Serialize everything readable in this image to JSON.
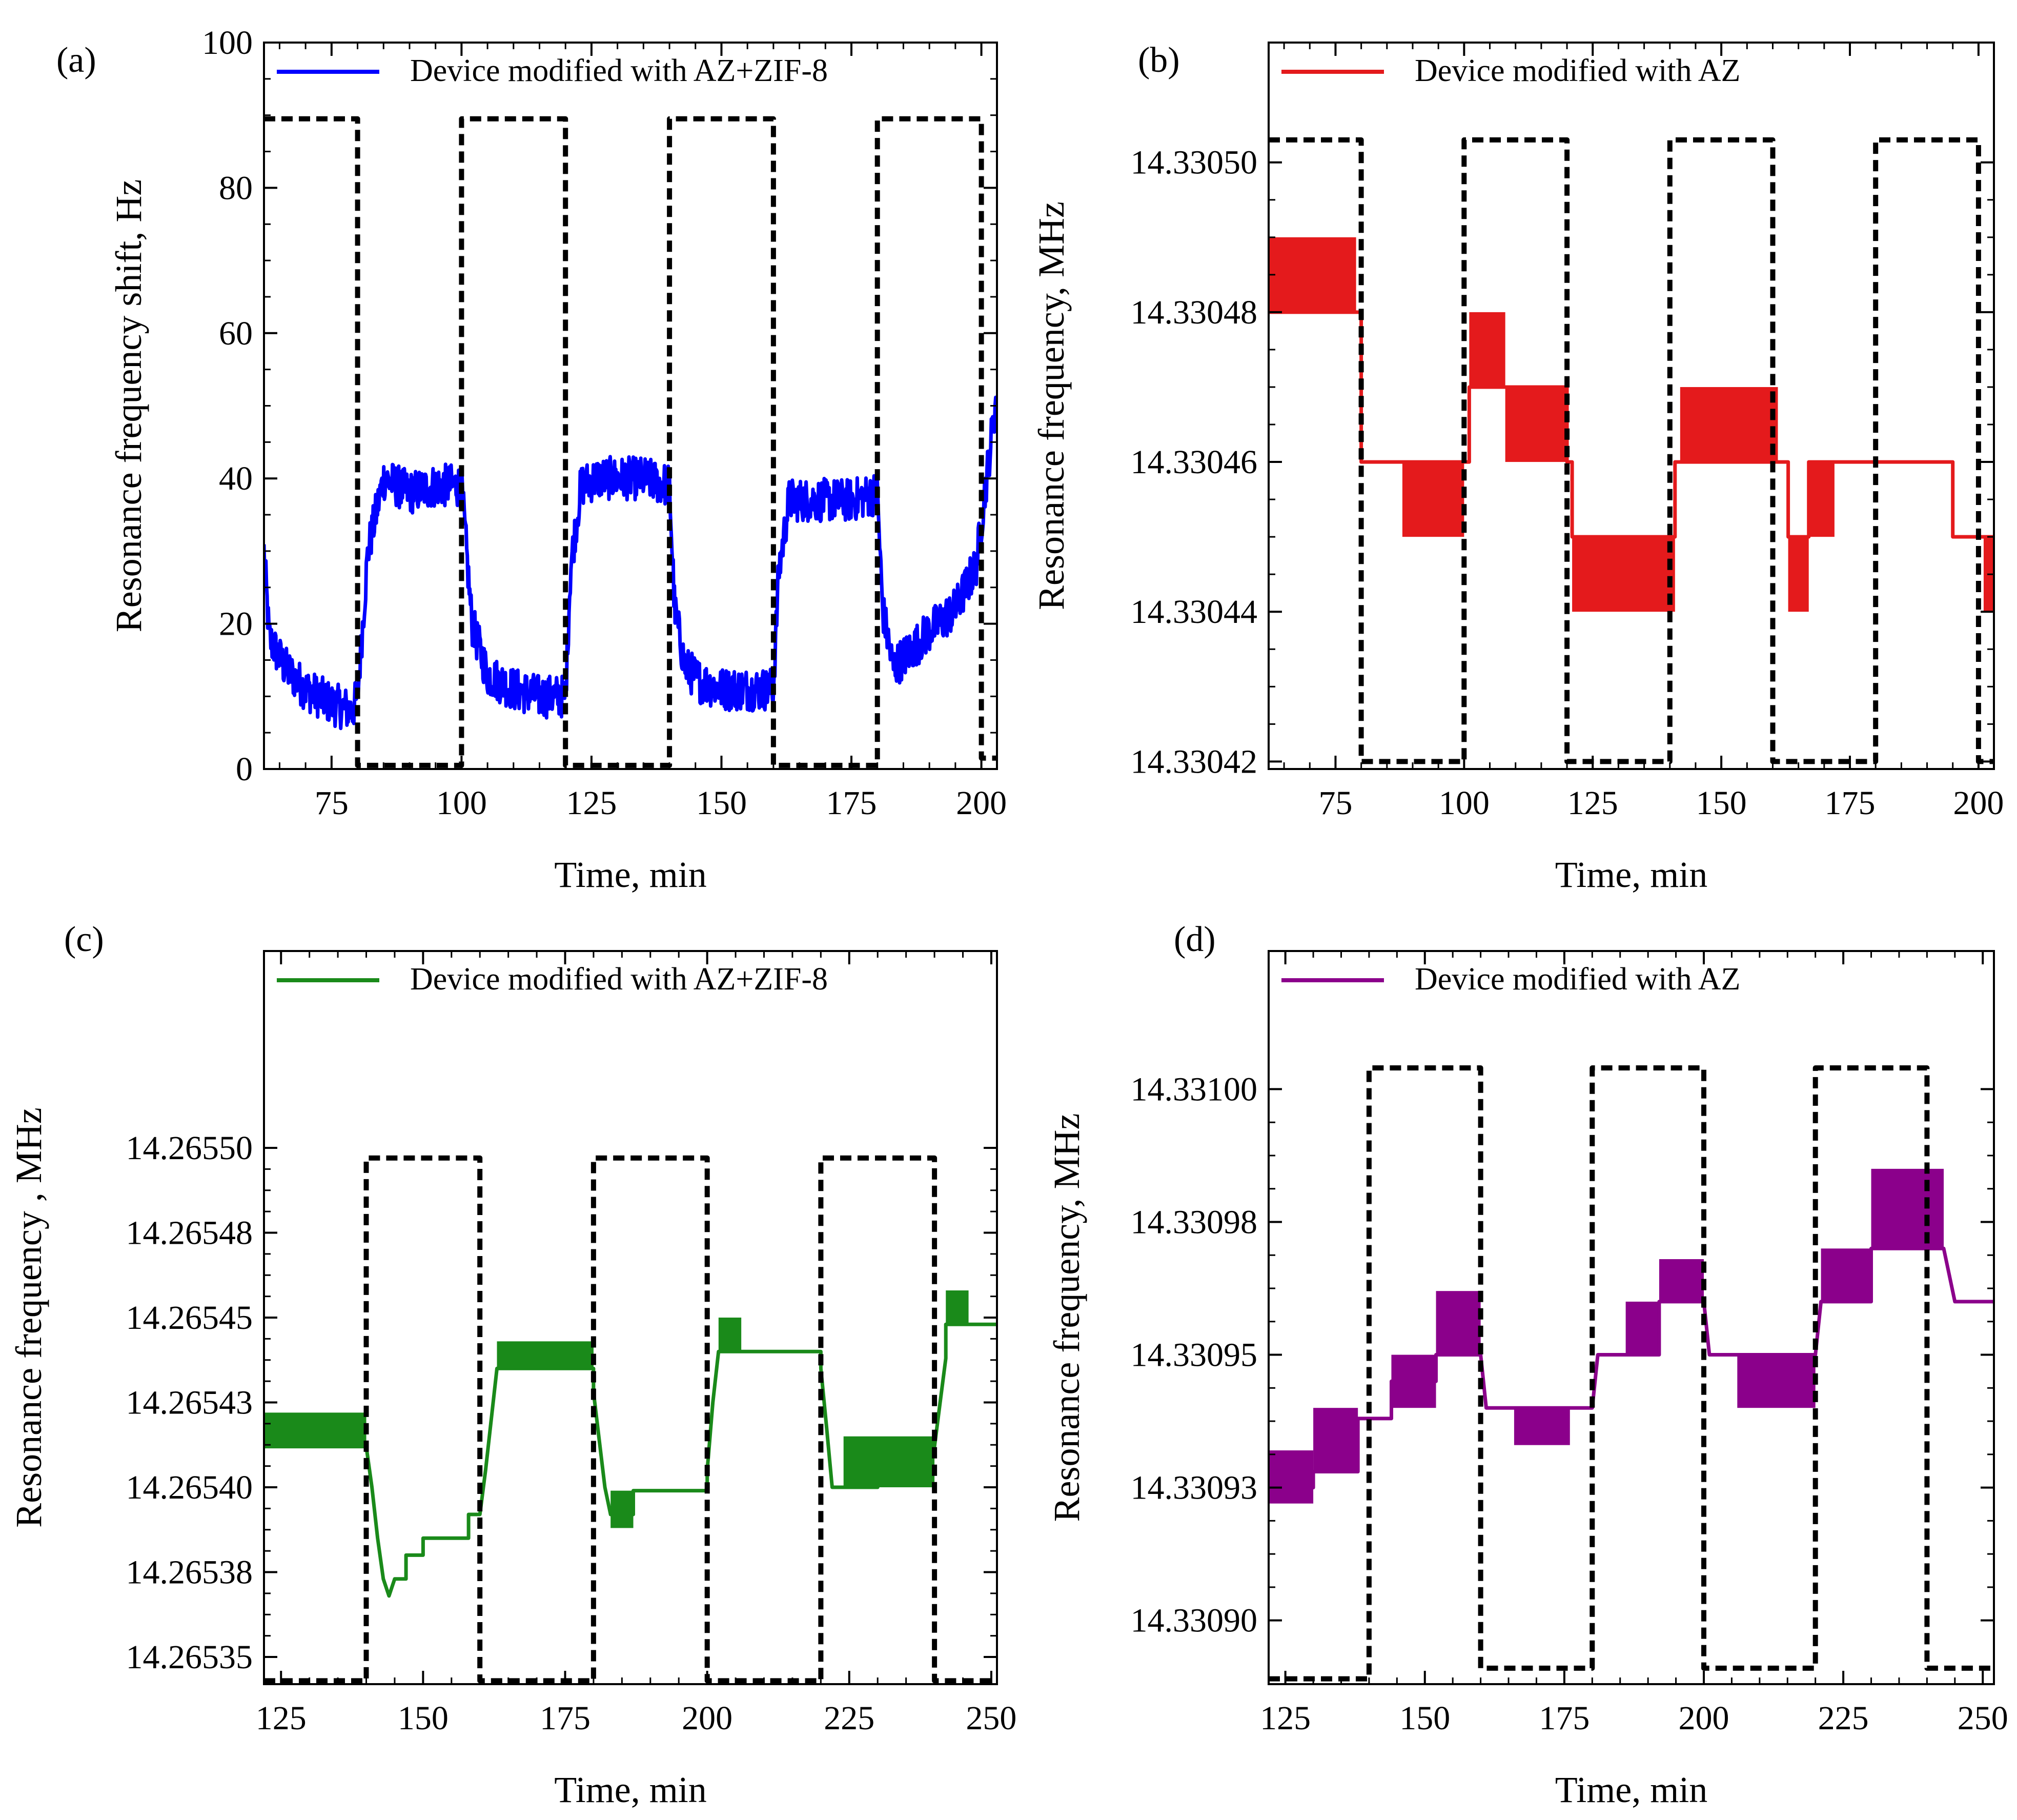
{
  "chart_data": [
    {
      "panel": "(a)",
      "type": "line",
      "xlabel": "Time, min",
      "ylabel": "Resonance frequency shift, Hz",
      "xlim": [
        62,
        203
      ],
      "ylim": [
        0,
        100
      ],
      "xticks": [
        75,
        100,
        125,
        150,
        175,
        200
      ],
      "yticks": [
        0,
        20,
        40,
        60,
        80,
        100
      ],
      "ytick_labels": [
        "0",
        "20",
        "40",
        "60",
        "80",
        "100"
      ],
      "legend": {
        "label": "Device modified with AZ+ZIF-8",
        "color": "#0000ff",
        "placement": "top"
      },
      "noise": 3.0,
      "series": [
        {
          "name": "Device modified with AZ+ZIF-8",
          "color": "#0000ff",
          "x": [
            62,
            63,
            66,
            70,
            75,
            79,
            80,
            82,
            85,
            90,
            95,
            100,
            102,
            105,
            110,
            115,
            120,
            121,
            123,
            126,
            130,
            135,
            140,
            141,
            143,
            146,
            150,
            155,
            160,
            161,
            163,
            166,
            170,
            175,
            180,
            181,
            183,
            186,
            190,
            195,
            199,
            201,
            203
          ],
          "y": [
            30,
            18,
            14,
            11,
            9,
            8,
            10,
            30,
            40,
            38,
            39,
            39,
            20,
            13,
            11,
            10,
            10,
            28,
            39,
            40,
            40,
            40,
            39,
            22,
            14,
            12,
            11,
            11,
            11,
            27,
            37,
            37,
            37,
            37,
            38,
            22,
            14,
            16,
            19,
            22,
            28,
            40,
            52
          ]
        },
        {
          "name": "gas pulses",
          "color": "#000000",
          "style": "dashed",
          "x": [
            62,
            80,
            80,
            100,
            100,
            120,
            120,
            140,
            140,
            160,
            160,
            180,
            180,
            200,
            200,
            203
          ],
          "y": [
            89.5,
            89.5,
            0.5,
            0.5,
            89.5,
            89.5,
            0.5,
            0.5,
            89.5,
            89.5,
            0.5,
            0.5,
            89.5,
            89.5,
            1.5,
            1.5
          ]
        }
      ]
    },
    {
      "panel": "(b)",
      "type": "line",
      "xlabel": "Time, min",
      "ylabel": "Resonance frequency, MHz",
      "xlim": [
        62,
        203
      ],
      "ylim": [
        14.330419,
        14.330516
      ],
      "xticks": [
        75,
        100,
        125,
        150,
        175,
        200
      ],
      "yticks": [
        14.33042,
        14.33044,
        14.33046,
        14.33048,
        14.3305
      ],
      "ytick_labels": [
        "14.33042",
        "14.33044",
        "14.33046",
        "14.33048",
        "14.33050"
      ],
      "legend": {
        "label": "Device modified with AZ",
        "color": "#e41a1c",
        "placement": "top"
      },
      "series": [
        {
          "name": "Device modified with AZ",
          "color": "#e41a1c",
          "x": [
            62,
            62,
            79,
            79,
            80,
            80,
            88,
            88,
            100,
            100,
            101,
            101,
            108,
            108,
            120,
            120,
            121,
            121,
            141,
            141,
            142,
            142,
            161,
            161,
            163,
            163,
            167,
            167,
            172,
            172,
            195,
            195,
            203
          ],
          "y": [
            14.33048,
            14.33048,
            14.33048,
            14.33048,
            14.33048,
            14.33046,
            14.33046,
            14.33046,
            14.33046,
            14.33046,
            14.33046,
            14.33047,
            14.33047,
            14.33047,
            14.33047,
            14.33046,
            14.33046,
            14.33045,
            14.33045,
            14.33046,
            14.33046,
            14.33046,
            14.33046,
            14.33046,
            14.33046,
            14.33045,
            14.33045,
            14.33046,
            14.33046,
            14.33046,
            14.33046,
            14.33045,
            14.33045
          ]
        },
        {
          "name": "gas pulses",
          "color": "#000000",
          "style": "dashed",
          "x": [
            62,
            80,
            80,
            100,
            100,
            120,
            120,
            140,
            140,
            160,
            160,
            180,
            180,
            200,
            200,
            203
          ],
          "y": [
            14.330503,
            14.330503,
            14.33042,
            14.33042,
            14.330503,
            14.330503,
            14.33042,
            14.33042,
            14.330503,
            14.330503,
            14.33042,
            14.33042,
            14.330503,
            14.330503,
            14.33042,
            14.33042
          ]
        }
      ],
      "bands": [
        {
          "x0": 62,
          "x1": 79,
          "y0": 14.33048,
          "y1": 14.33049
        },
        {
          "x0": 88,
          "x1": 100,
          "y0": 14.33045,
          "y1": 14.33046
        },
        {
          "x0": 101,
          "x1": 108,
          "y0": 14.33047,
          "y1": 14.33048
        },
        {
          "x0": 108,
          "x1": 120,
          "y0": 14.33046,
          "y1": 14.33047
        },
        {
          "x0": 121,
          "x1": 141,
          "y0": 14.33044,
          "y1": 14.33045
        },
        {
          "x0": 142,
          "x1": 161,
          "y0": 14.33046,
          "y1": 14.33047
        },
        {
          "x0": 163,
          "x1": 167,
          "y0": 14.33044,
          "y1": 14.33045
        },
        {
          "x0": 167,
          "x1": 172,
          "y0": 14.33045,
          "y1": 14.33046
        },
        {
          "x0": 201,
          "x1": 203,
          "y0": 14.33044,
          "y1": 14.33045
        }
      ]
    },
    {
      "panel": "(c)",
      "type": "line",
      "xlabel": "Time, min",
      "ylabel": "Resonance frequency , MHz",
      "xlim": [
        122,
        251
      ],
      "ylim": [
        14.265342,
        14.265558
      ],
      "xticks": [
        125,
        150,
        175,
        200,
        225,
        250
      ],
      "yticks": [
        14.26535,
        14.265375,
        14.2654,
        14.265425,
        14.26545,
        14.265475,
        14.2655
      ],
      "ytick_labels": [
        "14.26535",
        "14.26538",
        "14.26540",
        "14.26543",
        "14.26545",
        "14.26548",
        "14.26550"
      ],
      "legend": {
        "label": "Device modified with AZ+ZIF-8",
        "color": "#1a8a1a",
        "placement": "top"
      },
      "series": [
        {
          "name": "Device modified with AZ+ZIF-8",
          "color": "#1a8a1a",
          "x": [
            122,
            140,
            141,
            142,
            143,
            144,
            145,
            147,
            147,
            150,
            150,
            158,
            158,
            160,
            160,
            161,
            162,
            163,
            180,
            180,
            181,
            182,
            183,
            187,
            187,
            200,
            200,
            201,
            202,
            220,
            220,
            221,
            222,
            230,
            230,
            240,
            241,
            242,
            242,
            251
          ],
          "y": [
            14.265412,
            14.265412,
            14.2654,
            14.265385,
            14.265373,
            14.265368,
            14.265373,
            14.265373,
            14.26538,
            14.26538,
            14.265385,
            14.265385,
            14.265392,
            14.265392,
            14.265392,
            14.265405,
            14.26542,
            14.265435,
            14.265435,
            14.265428,
            14.265414,
            14.2654,
            14.265392,
            14.265392,
            14.265399,
            14.265399,
            14.265405,
            14.265425,
            14.26544,
            14.26544,
            14.265435,
            14.265418,
            14.2654,
            14.2654,
            14.265412,
            14.265412,
            14.265425,
            14.265438,
            14.265448,
            14.265448
          ]
        },
        {
          "name": "gas pulses",
          "color": "#000000",
          "style": "dashed",
          "x": [
            122,
            140,
            140,
            160,
            160,
            180,
            180,
            200,
            200,
            220,
            220,
            240,
            240,
            251
          ],
          "y": [
            14.265343,
            14.265343,
            14.265497,
            14.265497,
            14.265343,
            14.265343,
            14.265497,
            14.265497,
            14.265343,
            14.265343,
            14.265497,
            14.265497,
            14.265343,
            14.265343
          ]
        }
      ],
      "bands": [
        {
          "x0": 122,
          "x1": 140,
          "y0": 14.265412,
          "y1": 14.265422
        },
        {
          "x0": 163,
          "x1": 180,
          "y0": 14.265435,
          "y1": 14.265443
        },
        {
          "x0": 183,
          "x1": 187,
          "y0": 14.265388,
          "y1": 14.265399
        },
        {
          "x0": 202,
          "x1": 206,
          "y0": 14.26544,
          "y1": 14.26545
        },
        {
          "x0": 224,
          "x1": 240,
          "y0": 14.2654,
          "y1": 14.265415
        },
        {
          "x0": 242,
          "x1": 246,
          "y0": 14.265448,
          "y1": 14.265458
        }
      ]
    },
    {
      "panel": "(d)",
      "type": "line",
      "xlabel": "Time, min",
      "ylabel": "Resonance frequency, MHz",
      "xlim": [
        122,
        252
      ],
      "ylim": [
        14.330888,
        14.331026
      ],
      "xticks": [
        125,
        150,
        175,
        200,
        225,
        250
      ],
      "yticks": [
        14.3309,
        14.330925,
        14.33095,
        14.330975,
        14.331
      ],
      "ytick_labels": [
        "14.33090",
        "14.33093",
        "14.33095",
        "14.33098",
        "14.33100"
      ],
      "legend": {
        "label": "Device modified with AZ",
        "color": "#8b008b",
        "placement": "top"
      },
      "series": [
        {
          "name": "Device modified with AZ",
          "color": "#8b008b",
          "x": [
            122,
            130,
            130,
            138,
            138,
            144,
            144,
            152,
            152,
            160,
            160,
            161,
            161,
            180,
            180,
            181,
            181,
            192,
            192,
            200,
            200,
            201,
            201,
            220,
            220,
            221,
            221,
            230,
            230,
            243,
            243,
            245,
            245,
            252
          ],
          "y": [
            14.330925,
            14.330925,
            14.330928,
            14.330928,
            14.330938,
            14.330938,
            14.330945,
            14.330945,
            14.33095,
            14.33095,
            14.33095,
            14.33094,
            14.33094,
            14.33094,
            14.33094,
            14.33095,
            14.33095,
            14.33095,
            14.33096,
            14.33096,
            14.33096,
            14.33095,
            14.33095,
            14.33095,
            14.33095,
            14.33096,
            14.33096,
            14.33096,
            14.33097,
            14.33097,
            14.33097,
            14.33096,
            14.33096,
            14.33096
          ]
        },
        {
          "name": "gas pulses",
          "color": "#000000",
          "style": "dashed",
          "x": [
            122,
            140,
            140,
            160,
            160,
            180,
            180,
            200,
            200,
            220,
            220,
            240,
            240,
            252
          ],
          "y": [
            14.330889,
            14.330889,
            14.331004,
            14.331004,
            14.330891,
            14.330891,
            14.331004,
            14.331004,
            14.330891,
            14.330891,
            14.331004,
            14.331004,
            14.330891,
            14.330891
          ]
        }
      ],
      "bands": [
        {
          "x0": 122,
          "x1": 130,
          "y0": 14.330922,
          "y1": 14.330932
        },
        {
          "x0": 130,
          "x1": 138,
          "y0": 14.330928,
          "y1": 14.33094
        },
        {
          "x0": 144,
          "x1": 152,
          "y0": 14.33094,
          "y1": 14.33095
        },
        {
          "x0": 152,
          "x1": 160,
          "y0": 14.33095,
          "y1": 14.330962
        },
        {
          "x0": 166,
          "x1": 176,
          "y0": 14.330933,
          "y1": 14.33094
        },
        {
          "x0": 186,
          "x1": 192,
          "y0": 14.33095,
          "y1": 14.33096
        },
        {
          "x0": 192,
          "x1": 200,
          "y0": 14.33096,
          "y1": 14.330968
        },
        {
          "x0": 206,
          "x1": 220,
          "y0": 14.33094,
          "y1": 14.33095
        },
        {
          "x0": 221,
          "x1": 230,
          "y0": 14.33096,
          "y1": 14.33097
        },
        {
          "x0": 230,
          "x1": 243,
          "y0": 14.33097,
          "y1": 14.330985
        }
      ]
    }
  ]
}
